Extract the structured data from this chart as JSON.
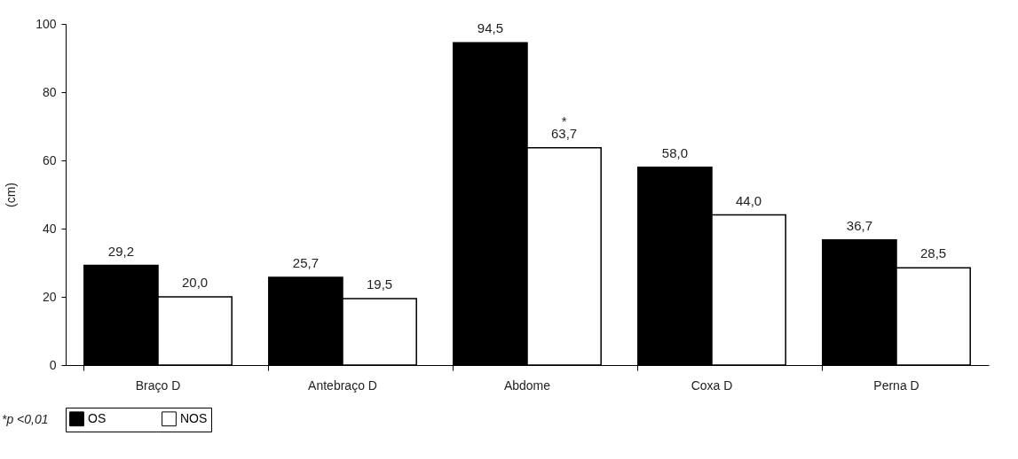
{
  "chart_data": {
    "type": "bar",
    "ylabel": "(cm)",
    "categories": [
      "Braço D",
      "Antebraço D",
      "Abdome",
      "Coxa D",
      "Perna D"
    ],
    "series": [
      {
        "name": "OS",
        "color": "#000000",
        "values": [
          29.2,
          25.7,
          94.5,
          58.0,
          36.7
        ],
        "value_labels": [
          "29,2",
          "25,7",
          "94,5",
          "58,0",
          "36,7"
        ]
      },
      {
        "name": "NOS",
        "color": "#ffffff",
        "values": [
          20.0,
          19.5,
          63.7,
          44.0,
          28.5
        ],
        "value_labels": [
          "20,0",
          "19,5",
          "63,7",
          "44,0",
          "28,5"
        ]
      }
    ],
    "ylim": [
      0,
      100
    ],
    "yticks": [
      0,
      20,
      40,
      60,
      80,
      100
    ],
    "grid": false,
    "legend": "bottom",
    "annotations": [
      {
        "text": "*",
        "x": "Abdome",
        "y": 63.7
      },
      "*p <0,01"
    ]
  }
}
